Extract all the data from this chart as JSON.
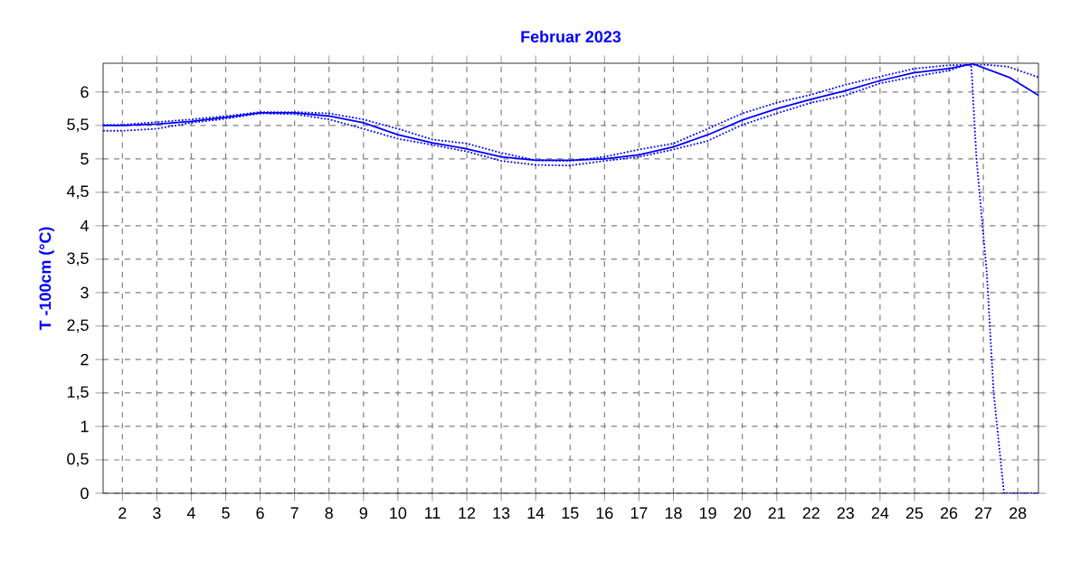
{
  "chart_data": {
    "type": "line",
    "title": "Februar 2023",
    "ylabel": "T -100cm (°C)",
    "xlim": [
      1.44,
      28.6
    ],
    "ylim": [
      0,
      6.43
    ],
    "xticks": [
      2,
      3,
      4,
      5,
      6,
      7,
      8,
      9,
      10,
      11,
      12,
      13,
      14,
      15,
      16,
      17,
      18,
      19,
      20,
      21,
      22,
      23,
      24,
      25,
      26,
      27,
      28
    ],
    "yticks": [
      0,
      {
        "value": 0.5,
        "label": "0,5"
      },
      1,
      {
        "value": 1.5,
        "label": "1,5"
      },
      2,
      {
        "value": 2.5,
        "label": "2,5"
      },
      3,
      {
        "value": 3.5,
        "label": "3,5"
      },
      4,
      {
        "value": 4.5,
        "label": "4,5"
      },
      5,
      {
        "value": 5.5,
        "label": "5,5"
      },
      6
    ],
    "grid": true,
    "marker": "none",
    "series": [
      {
        "color": "#0000ff",
        "line_style": "solid",
        "x": [
          1.44,
          2,
          3,
          4,
          5,
          6,
          7,
          8,
          9,
          10,
          11,
          12,
          13,
          14,
          15,
          16,
          17,
          18,
          19,
          20,
          21,
          22,
          23,
          24,
          25,
          26,
          26.7,
          27.75,
          28.6
        ],
        "values": [
          5.5,
          5.5,
          5.52,
          5.56,
          5.62,
          5.69,
          5.69,
          5.64,
          5.54,
          5.36,
          5.24,
          5.15,
          5.03,
          4.98,
          4.98,
          5.0,
          5.06,
          5.18,
          5.36,
          5.58,
          5.75,
          5.89,
          6.02,
          6.17,
          6.29,
          6.35,
          6.42,
          6.22,
          5.95
        ]
      },
      {
        "color": "#0000ff",
        "line_style": "dotted",
        "x": [
          1.44,
          2,
          3,
          4,
          5,
          6,
          7,
          8,
          9,
          10,
          11,
          12,
          13,
          14,
          15,
          16,
          17,
          18,
          19,
          20,
          21,
          22,
          23,
          24,
          25,
          26,
          27,
          27.7,
          28.6
        ],
        "values": [
          5.51,
          5.51,
          5.55,
          5.59,
          5.64,
          5.7,
          5.7,
          5.68,
          5.59,
          5.45,
          5.29,
          5.23,
          5.09,
          4.98,
          4.97,
          5.03,
          5.14,
          5.23,
          5.45,
          5.68,
          5.84,
          5.96,
          6.11,
          6.23,
          6.35,
          6.4,
          6.41,
          6.38,
          6.22
        ]
      },
      {
        "color": "#0000ff",
        "line_style": "dotted",
        "x": [
          1.44,
          2,
          3,
          4,
          5,
          6,
          7,
          8,
          9,
          10,
          11,
          12,
          13,
          14,
          15,
          16,
          17,
          18,
          19,
          20,
          21,
          22,
          23,
          24,
          25,
          26,
          26.5,
          26.65,
          26.8,
          27.1,
          27.3,
          27.6,
          28.6
        ],
        "values": [
          5.42,
          5.42,
          5.45,
          5.54,
          5.6,
          5.68,
          5.67,
          5.59,
          5.45,
          5.3,
          5.21,
          5.11,
          4.97,
          4.91,
          4.9,
          4.97,
          5.03,
          5.14,
          5.27,
          5.51,
          5.68,
          5.84,
          5.95,
          6.13,
          6.23,
          6.32,
          6.41,
          6.4,
          5.0,
          3.3,
          1.5,
          0,
          0
        ]
      }
    ]
  }
}
